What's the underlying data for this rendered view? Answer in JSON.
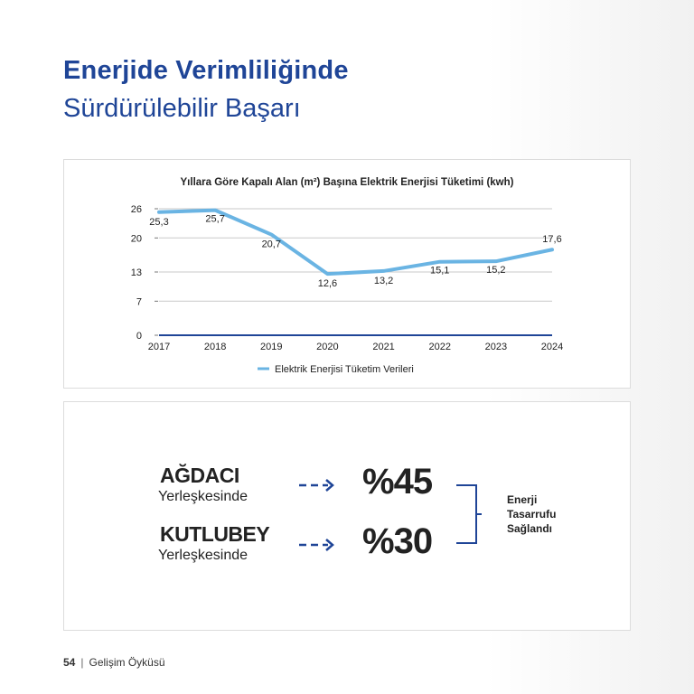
{
  "header": {
    "title_bold": "Enerjide Verimliliğinde",
    "title_light": "Sürdürülebilir Başarı"
  },
  "colors": {
    "brand_blue": "#1f4597",
    "series_line": "#6ab4e3",
    "axis_dark": "#1f4597"
  },
  "chart_data": {
    "type": "line",
    "title": "Yıllara Göre Kapalı Alan (m²) Başına Elektrik Enerjisi Tüketimi (kwh)",
    "categories": [
      "2017",
      "2018",
      "2019",
      "2020",
      "2021",
      "2022",
      "2023",
      "2024"
    ],
    "series": [
      {
        "name": "Elektrik Enerjisi Tüketim Verileri",
        "values": [
          25.3,
          25.7,
          20.7,
          12.6,
          13.2,
          15.1,
          15.2,
          17.6
        ],
        "labels": [
          "25,3",
          "25,7",
          "20,7",
          "12,6",
          "13,2",
          "15,1",
          "15,2",
          "17,6"
        ]
      }
    ],
    "y_ticks": [
      0,
      7,
      13,
      20,
      26
    ],
    "ylim": [
      0,
      26
    ],
    "grid": true,
    "legend_position": "bottom"
  },
  "savings": {
    "rows": [
      {
        "name": "AĞDACI",
        "sub": "Yerleşkesinde",
        "value": "%45"
      },
      {
        "name": "KUTLUBEY",
        "sub": "Yerleşkesinde",
        "value": "%30"
      }
    ],
    "note_lines": [
      "Enerji",
      "Tasarrufu",
      "Sağlandı"
    ]
  },
  "footer": {
    "page": "54",
    "separator": "|",
    "section": "Gelişim Öyküsü"
  }
}
